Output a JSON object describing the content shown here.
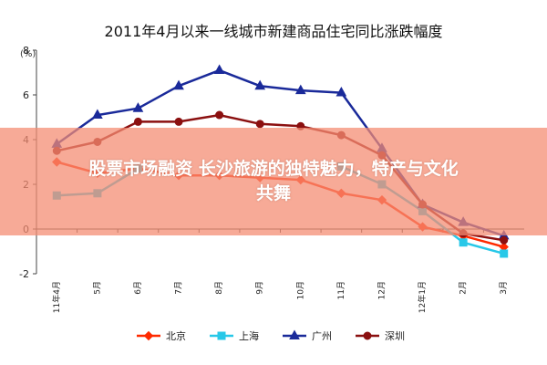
{
  "chart_data": {
    "type": "line",
    "title": "2011年4月以来一线城市新建商品住宅同比涨跌幅度",
    "ylabel": "(%)",
    "xlabel": "",
    "ylim": [
      -2,
      8
    ],
    "yticks": [
      -2,
      0,
      2,
      4,
      6,
      8
    ],
    "categories": [
      "11年4月",
      "5月",
      "6月",
      "7月",
      "8月",
      "9月",
      "10月",
      "11月",
      "12月",
      "12年1月",
      "2月",
      "3月"
    ],
    "grid": false,
    "legend_position": "bottom",
    "series": [
      {
        "name": "北京",
        "color": "#ff2a00",
        "marker": "diamond",
        "values": [
          3.0,
          2.5,
          2.7,
          2.4,
          2.4,
          2.3,
          2.2,
          1.6,
          1.3,
          0.1,
          -0.3,
          -0.8
        ]
      },
      {
        "name": "上海",
        "color": "#28c8e8",
        "marker": "square",
        "values": [
          1.5,
          1.6,
          2.7,
          null,
          null,
          null,
          null,
          2.8,
          2.0,
          0.8,
          -0.6,
          -1.1
        ]
      },
      {
        "name": "广州",
        "color": "#1a2a9a",
        "marker": "triangle",
        "values": [
          3.8,
          5.1,
          5.4,
          6.4,
          7.1,
          6.4,
          6.2,
          6.1,
          3.6,
          1.1,
          0.3,
          -0.3
        ]
      },
      {
        "name": "深圳",
        "color": "#8b1010",
        "marker": "circle",
        "values": [
          3.5,
          3.9,
          4.8,
          4.8,
          5.1,
          4.7,
          4.6,
          4.2,
          3.3,
          1.1,
          -0.2,
          -0.5
        ]
      }
    ]
  },
  "overlay": {
    "line1": "股票市场融资 长沙旅游的独特魅力，特产与文化",
    "line2": "共舞"
  }
}
